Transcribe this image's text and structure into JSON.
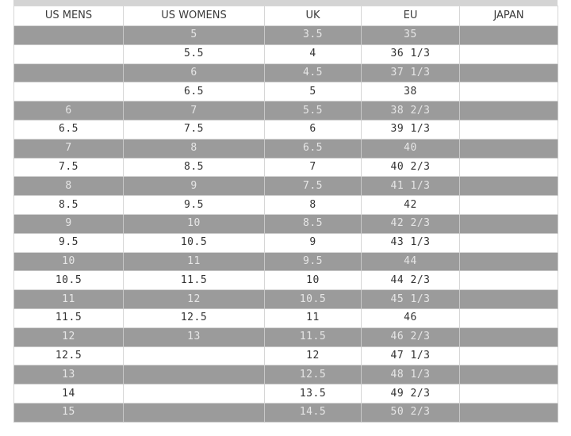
{
  "size_chart": {
    "headers": [
      "US MENS",
      "US WOMENS",
      "UK",
      "EU",
      "JAPAN"
    ],
    "rows": [
      [
        "",
        "5",
        "3.5",
        "35",
        ""
      ],
      [
        "",
        "5.5",
        "4",
        "36 1/3",
        ""
      ],
      [
        "",
        "6",
        "4.5",
        "37 1/3",
        ""
      ],
      [
        "",
        "6.5",
        "5",
        "38",
        ""
      ],
      [
        "6",
        "7",
        "5.5",
        "38 2/3",
        ""
      ],
      [
        "6.5",
        "7.5",
        "6",
        "39 1/3",
        ""
      ],
      [
        "7",
        "8",
        "6.5",
        "40",
        ""
      ],
      [
        "7.5",
        "8.5",
        "7",
        "40 2/3",
        ""
      ],
      [
        "8",
        "9",
        "7.5",
        "41 1/3",
        ""
      ],
      [
        "8.5",
        "9.5",
        "8",
        "42",
        ""
      ],
      [
        "9",
        "10",
        "8.5",
        "42 2/3",
        ""
      ],
      [
        "9.5",
        "10.5",
        "9",
        "43 1/3",
        ""
      ],
      [
        "10",
        "11",
        "9.5",
        "44",
        ""
      ],
      [
        "10.5",
        "11.5",
        "10",
        "44 2/3",
        ""
      ],
      [
        "11",
        "12",
        "10.5",
        "45 1/3",
        ""
      ],
      [
        "11.5",
        "12.5",
        "11",
        "46",
        ""
      ],
      [
        "12",
        "13",
        "11.5",
        "46 2/3",
        ""
      ],
      [
        "12.5",
        "",
        "12",
        "47 1/3",
        ""
      ],
      [
        "13",
        "",
        "12.5",
        "48 1/3",
        ""
      ],
      [
        "14",
        "",
        "13.5",
        "49 2/3",
        ""
      ],
      [
        "15",
        "",
        "14.5",
        "50 2/3",
        ""
      ]
    ]
  },
  "colors": {
    "shaded_row": "#9b9b9b",
    "plain_row": "#ffffff",
    "border": "#d6d6d6"
  }
}
